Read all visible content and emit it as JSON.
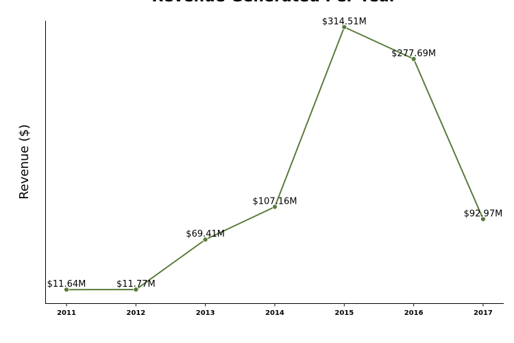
{
  "chart_data": {
    "type": "line",
    "title": "Revenue Generated Per Year",
    "xlabel": "",
    "ylabel": "Revenue ($)",
    "categories": [
      "2011",
      "2012",
      "2013",
      "2014",
      "2015",
      "2016",
      "2017"
    ],
    "values": [
      11.64,
      11.77,
      69.41,
      107.16,
      314.51,
      277.69,
      92.97
    ],
    "data_labels": [
      "$11.64M",
      "$11.77M",
      "$69.41M",
      "$107.16M",
      "$314.51M",
      "$277.69M",
      "$92.97M"
    ],
    "ylim": [
      -4,
      322
    ],
    "grid": false,
    "line_color": "#5a7a3a",
    "marker_color": "#5a7a3a"
  }
}
